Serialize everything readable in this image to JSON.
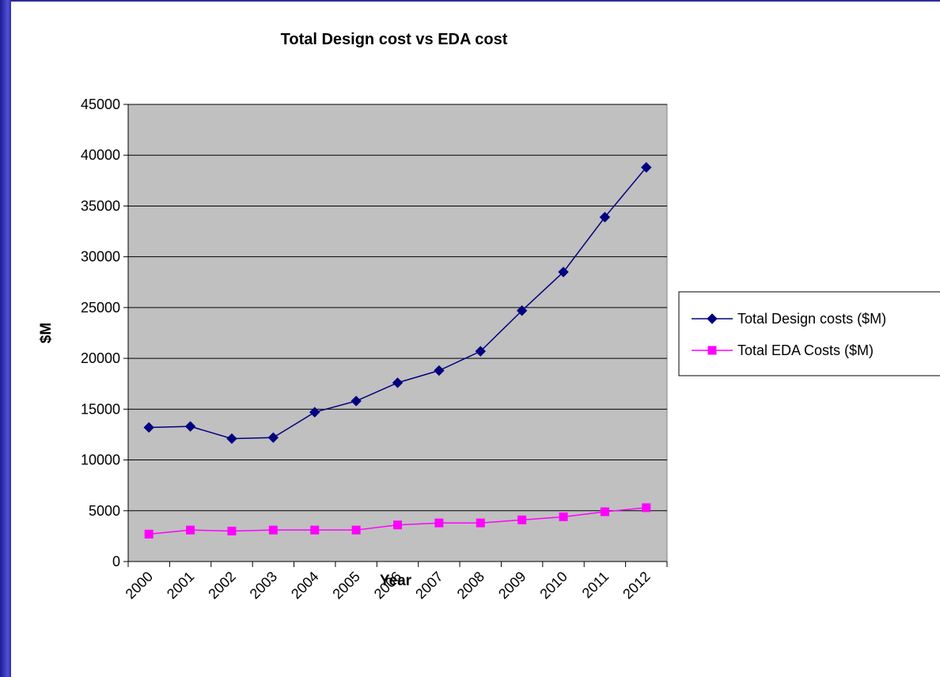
{
  "colors": {
    "plot_background": "#c0c0c0",
    "design_series": "#000080",
    "eda_series": "#ff00ff",
    "slide_frame": "#2d2d9a"
  },
  "chart_data": {
    "type": "line",
    "title": "Total Design cost vs EDA cost",
    "xlabel": "Year",
    "ylabel": "$M",
    "categories": [
      "2000",
      "2001",
      "2002",
      "2003",
      "2004",
      "2005",
      "2006",
      "2007",
      "2008",
      "2009",
      "2010",
      "2011",
      "2012"
    ],
    "ylim": [
      0,
      45000
    ],
    "yticks": [
      0,
      5000,
      10000,
      15000,
      20000,
      25000,
      30000,
      35000,
      40000,
      45000
    ],
    "grid": true,
    "legend_position": "right",
    "series": [
      {
        "name": "Total Design costs ($M)",
        "marker": "diamond",
        "color": "#000080",
        "values": [
          13200,
          13300,
          12100,
          12200,
          14700,
          15800,
          17600,
          18800,
          20700,
          24700,
          28500,
          33900,
          38800
        ]
      },
      {
        "name": "Total EDA Costs ($M)",
        "marker": "square",
        "color": "#ff00ff",
        "values": [
          2700,
          3100,
          3000,
          3100,
          3100,
          3100,
          3600,
          3800,
          3800,
          4100,
          4400,
          4900,
          5300
        ]
      }
    ]
  }
}
